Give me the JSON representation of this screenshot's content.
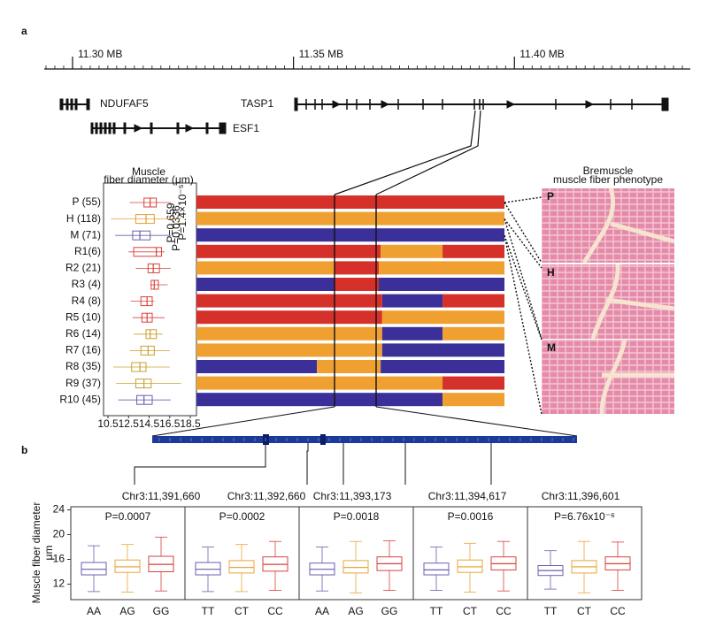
{
  "panel_a": {
    "label": "a",
    "genome_axis": {
      "xlim": [
        11.2936,
        11.4398
      ],
      "xticks": [
        {
          "value": 11.3,
          "label": "11.30 MB"
        },
        {
          "value": 11.35,
          "label": "11.35 MB"
        },
        {
          "value": 11.4,
          "label": "11.40 MB"
        }
      ],
      "minor_xticks": [
        11.294,
        11.296,
        11.298,
        11.302,
        11.304,
        11.306,
        11.308,
        11.31,
        11.312,
        11.314,
        11.316,
        11.318,
        11.32,
        11.322,
        11.324,
        11.326,
        11.328,
        11.33,
        11.332,
        11.334,
        11.336,
        11.338,
        11.34,
        11.342,
        11.344,
        11.346,
        11.348,
        11.352,
        11.354,
        11.356,
        11.358,
        11.36,
        11.362,
        11.364,
        11.366,
        11.368,
        11.37,
        11.372,
        11.374,
        11.376,
        11.378,
        11.38,
        11.382,
        11.384,
        11.386,
        11.388,
        11.39,
        11.392,
        11.394,
        11.396,
        11.398,
        11.402,
        11.404,
        11.406,
        11.408,
        11.41,
        11.412,
        11.414,
        11.416,
        11.418,
        11.42,
        11.422,
        11.424,
        11.426,
        11.428,
        11.43,
        11.432,
        11.434,
        11.436,
        11.438
      ]
    },
    "genes": [
      {
        "name": "NDUFAF5"
      },
      {
        "name": "TASP1"
      },
      {
        "name": "ESF1"
      }
    ]
  },
  "boxplot_a": {
    "title_lines": [
      "Muscle",
      "fiber diameter (μm)"
    ],
    "xlim": [
      10.07,
      19.1
    ],
    "xticks": [
      10.5,
      12.5,
      14.5,
      16.5,
      18.5
    ],
    "p_labels": [
      "P=0.0336",
      "P=0.659",
      "P=1.4×10⁻⁵"
    ],
    "rows": [
      {
        "label": "P (55)",
        "color": "#d9423b",
        "stats": [
          12.6,
          14.0,
          14.6,
          15.2,
          16.6
        ]
      },
      {
        "label": "H (118)",
        "color": "#e0a030",
        "stats": [
          10.8,
          13.2,
          14.2,
          15.0,
          17.6
        ]
      },
      {
        "label": "M (71)",
        "color": "#6b5fb0",
        "stats": [
          11.2,
          12.9,
          13.6,
          14.6,
          16.6
        ]
      },
      {
        "label": "R1(6)",
        "color": "#d9423b",
        "stats": [
          12.5,
          13.0,
          15.2,
          15.7,
          16.0
        ]
      },
      {
        "label": "R2 (21)",
        "color": "#d9423b",
        "stats": [
          13.2,
          14.4,
          14.9,
          15.5,
          16.6
        ]
      },
      {
        "label": "R3 (4)",
        "color": "#d9423b",
        "stats": [
          14.6,
          14.7,
          15.0,
          15.4,
          16.3
        ]
      },
      {
        "label": "R4 (8)",
        "color": "#d9423b",
        "stats": [
          12.7,
          13.7,
          14.3,
          14.8,
          15.0
        ]
      },
      {
        "label": "R5 (10)",
        "color": "#d9423b",
        "stats": [
          12.9,
          13.8,
          14.3,
          14.8,
          16.0
        ]
      },
      {
        "label": "R6 (14)",
        "color": "#c8a030",
        "stats": [
          13.0,
          14.2,
          14.6,
          15.2,
          15.8
        ]
      },
      {
        "label": "R7 (16)",
        "color": "#c8a030",
        "stats": [
          12.6,
          13.7,
          14.4,
          15.0,
          16.5
        ]
      },
      {
        "label": "R8 (35)",
        "color": "#c8a030",
        "stats": [
          11.0,
          12.8,
          13.6,
          14.2,
          16.5
        ]
      },
      {
        "label": "R9 (37)",
        "color": "#c8a030",
        "stats": [
          11.3,
          13.2,
          14.0,
          14.7,
          17.6
        ]
      },
      {
        "label": "R10 (45)",
        "color": "#6b5fb0",
        "stats": [
          11.5,
          13.3,
          14.0,
          14.8,
          16.6
        ]
      }
    ]
  },
  "haplotypes": {
    "rows": [
      [
        {
          "color": "#d6302a",
          "end": 100
        }
      ],
      [
        {
          "color": "#f0a030",
          "end": 100
        }
      ],
      [
        {
          "color": "#3b2f9a",
          "end": 100
        }
      ],
      [
        {
          "color": "#d6302a",
          "end": 59.8
        },
        {
          "color": "#f0a030",
          "end": 79.9
        },
        {
          "color": "#d6302a",
          "end": 100
        }
      ],
      [
        {
          "color": "#f0a030",
          "end": 44.8
        },
        {
          "color": "#d6302a",
          "end": 59.2
        },
        {
          "color": "#f0a030",
          "end": 100
        }
      ],
      [
        {
          "color": "#3b2f9a",
          "end": 44.8
        },
        {
          "color": "#d6302a",
          "end": 59.2
        },
        {
          "color": "#3b2f9a",
          "end": 100
        }
      ],
      [
        {
          "color": "#d6302a",
          "end": 60.3
        },
        {
          "color": "#3b2f9a",
          "end": 79.9
        },
        {
          "color": "#d6302a",
          "end": 100
        }
      ],
      [
        {
          "color": "#d6302a",
          "end": 60.3
        },
        {
          "color": "#f0a030",
          "end": 100
        }
      ],
      [
        {
          "color": "#f0a030",
          "end": 60.3
        },
        {
          "color": "#3b2f9a",
          "end": 79.9
        },
        {
          "color": "#f0a030",
          "end": 100
        }
      ],
      [
        {
          "color": "#f0a030",
          "end": 60.3
        },
        {
          "color": "#3b2f9a",
          "end": 100
        }
      ],
      [
        {
          "color": "#3b2f9a",
          "end": 39.1
        },
        {
          "color": "#f0a030",
          "end": 59.8
        },
        {
          "color": "#3b2f9a",
          "end": 100
        }
      ],
      [
        {
          "color": "#f0a030",
          "end": 79.9
        },
        {
          "color": "#d6302a",
          "end": 100
        }
      ],
      [
        {
          "color": "#3b2f9a",
          "end": 79.9
        },
        {
          "color": "#f0a030",
          "end": 100
        }
      ]
    ]
  },
  "phenotype": {
    "title_lines": [
      "Bremuscle",
      "muscle fiber phenotype"
    ],
    "images": [
      {
        "label": "P"
      },
      {
        "label": "H"
      },
      {
        "label": "M"
      }
    ]
  },
  "panel_b": {
    "label": "b",
    "y_label_lines": [
      "Muscle fiber diameter",
      "μm"
    ],
    "ylim": [
      9.5,
      24.5
    ],
    "yticks": [
      12,
      16,
      20,
      24
    ],
    "colors": [
      "#6b5fb0",
      "#e8a53a",
      "#d9423b"
    ],
    "snps": [
      {
        "position": "Chr3:11,391,660",
        "p": "P=0.0007",
        "categories": [
          "AA",
          "AG",
          "GG"
        ],
        "boxes": [
          [
            10.8,
            13.5,
            14.4,
            15.5,
            18.2
          ],
          [
            10.7,
            13.9,
            14.8,
            15.9,
            18.4
          ],
          [
            10.9,
            14.0,
            15.2,
            16.5,
            19.6
          ]
        ]
      },
      {
        "position": "Chr3:11,392,660",
        "p": "P=0.0002",
        "categories": [
          "TT",
          "CT",
          "CC"
        ],
        "boxes": [
          [
            10.8,
            13.5,
            14.4,
            15.5,
            18.0
          ],
          [
            10.8,
            13.8,
            14.7,
            15.8,
            18.4
          ],
          [
            11.0,
            14.1,
            15.2,
            16.4,
            18.9
          ]
        ]
      },
      {
        "position": "Chr3:11,393,173",
        "p": "P=0.0018",
        "categories": [
          "AA",
          "AG",
          "GG"
        ],
        "boxes": [
          [
            10.9,
            13.5,
            14.4,
            15.4,
            18.0
          ],
          [
            10.6,
            13.8,
            14.7,
            15.8,
            18.9
          ],
          [
            11.0,
            14.2,
            15.3,
            16.4,
            19.0
          ]
        ]
      },
      {
        "position": "Chr3:11,394,617",
        "p": "P=0.0016",
        "categories": [
          "TT",
          "CT",
          "CC"
        ],
        "boxes": [
          [
            11.0,
            13.5,
            14.3,
            15.4,
            18.0
          ],
          [
            10.7,
            13.9,
            14.8,
            15.9,
            18.6
          ],
          [
            10.9,
            14.3,
            15.3,
            16.4,
            18.9
          ]
        ]
      },
      {
        "position": "Chr3:11,396,601",
        "p": "P=6.76x10⁻⁶",
        "categories": [
          "TT",
          "CT",
          "CC"
        ],
        "boxes": [
          [
            11.2,
            13.4,
            14.2,
            15.0,
            17.4
          ],
          [
            10.6,
            13.8,
            14.8,
            15.8,
            18.9
          ],
          [
            11.0,
            14.3,
            15.3,
            16.4,
            18.8
          ]
        ]
      }
    ]
  }
}
